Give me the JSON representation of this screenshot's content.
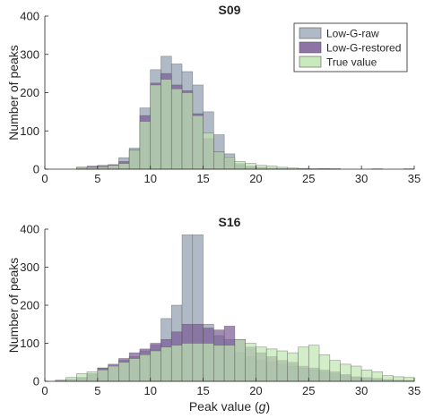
{
  "chart_data": [
    {
      "type": "histogram",
      "title": "S09",
      "xlabel": "",
      "ylabel": "Number of peaks",
      "xlim": [
        0,
        35
      ],
      "ylim": [
        0,
        400
      ],
      "xticks": [
        0,
        5,
        10,
        15,
        20,
        25,
        30,
        35
      ],
      "yticks": [
        0,
        100,
        200,
        300,
        400
      ],
      "bin_width": 1,
      "bin_start": 3,
      "legend_location": "top-right",
      "series": [
        {
          "name": "Low-G-raw",
          "color": "#b0bac6",
          "values": [
            5,
            5,
            5,
            10,
            30,
            55,
            160,
            260,
            295,
            275,
            255,
            220,
            150,
            90,
            40,
            15,
            5,
            3,
            2,
            1,
            1,
            0,
            0,
            1,
            0,
            0,
            0,
            0,
            1,
            0,
            0,
            1
          ]
        },
        {
          "name": "Low-G-restored",
          "color": "#7a5a96",
          "values": [
            5,
            8,
            10,
            12,
            20,
            50,
            140,
            225,
            250,
            220,
            205,
            145,
            80,
            45,
            25,
            12,
            8,
            5,
            3,
            2,
            1,
            1,
            1,
            1,
            1,
            0,
            0,
            0,
            0,
            0,
            0,
            0
          ]
        },
        {
          "name": "True value",
          "color": "#bfe6b0",
          "values": [
            5,
            5,
            6,
            10,
            15,
            50,
            125,
            220,
            235,
            210,
            200,
            140,
            95,
            45,
            30,
            20,
            15,
            10,
            8,
            5,
            3,
            2,
            1,
            1,
            1,
            0,
            0,
            0,
            0,
            0,
            0,
            0
          ]
        }
      ]
    },
    {
      "type": "histogram",
      "title": "S16",
      "xlabel": "Peak value (",
      "xlabel_italic": "g",
      "xlabel_suffix": ")",
      "ylabel": "Number of peaks",
      "xlim": [
        0,
        35
      ],
      "ylim": [
        0,
        400
      ],
      "xticks": [
        0,
        5,
        10,
        15,
        20,
        25,
        30,
        35
      ],
      "yticks": [
        0,
        100,
        200,
        300,
        400
      ],
      "bin_width": 1,
      "bin_start": 1,
      "series": [
        {
          "name": "Low-G-raw",
          "color": "#b0bac6",
          "values": [
            2,
            5,
            10,
            20,
            35,
            40,
            55,
            65,
            80,
            95,
            165,
            200,
            385,
            385,
            150,
            120,
            110,
            75,
            65,
            55,
            50,
            45,
            40,
            35,
            30,
            25,
            20,
            15,
            10,
            8,
            6,
            4,
            3,
            2
          ]
        },
        {
          "name": "Low-G-restored",
          "color": "#7a5a96",
          "values": [
            2,
            5,
            10,
            20,
            35,
            45,
            60,
            75,
            85,
            100,
            110,
            130,
            150,
            150,
            140,
            135,
            145,
            110,
            90,
            75,
            65,
            55,
            50,
            40,
            35,
            30,
            25,
            18,
            12,
            10,
            8,
            5,
            3,
            2
          ]
        },
        {
          "name": "True value",
          "color": "#bfe6b0",
          "values": [
            3,
            10,
            20,
            25,
            30,
            40,
            50,
            60,
            70,
            80,
            90,
            95,
            100,
            100,
            100,
            95,
            95,
            110,
            100,
            90,
            85,
            80,
            75,
            90,
            95,
            70,
            55,
            45,
            40,
            30,
            25,
            15,
            12,
            10
          ]
        }
      ]
    }
  ]
}
